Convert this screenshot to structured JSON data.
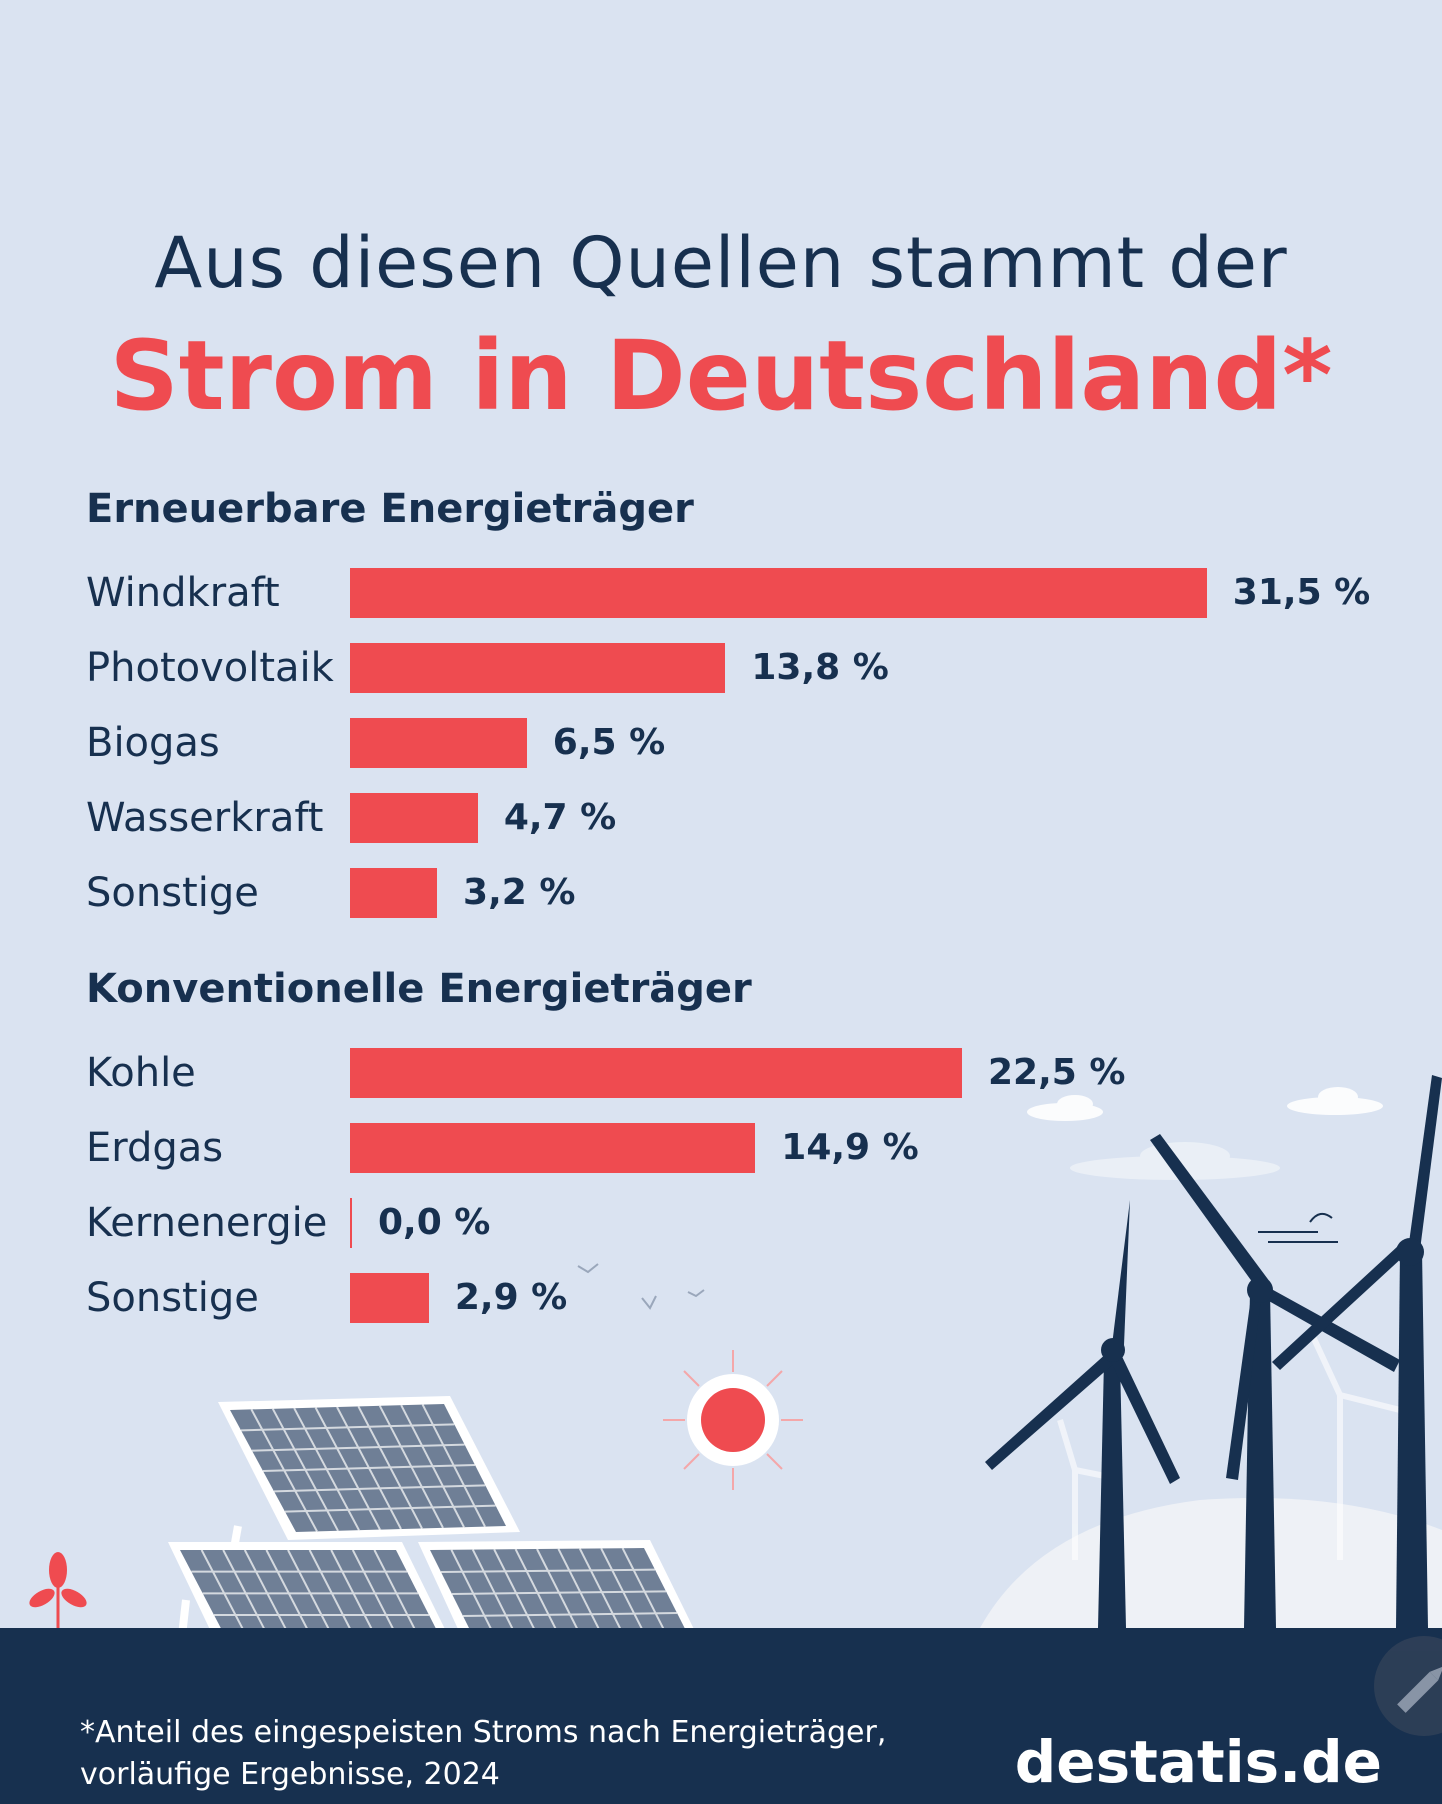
{
  "title_line1": "Aus diesen Quellen stammt der",
  "title_line2": "Strom in Deutschland*",
  "chart_data": [
    {
      "type": "bar",
      "title": "Erneuerbare Energieträger",
      "categories": [
        "Windkraft",
        "Photovoltaik",
        "Biogas",
        "Wasserkraft",
        "Sonstige"
      ],
      "values": [
        31.5,
        13.8,
        6.5,
        4.7,
        3.2
      ],
      "value_labels": [
        "31,5 %",
        "13,8 %",
        "6,5 %",
        "4,7 %",
        "3,2 %"
      ],
      "unit": "%",
      "orientation": "horizontal",
      "bar_color": "#ef4b50"
    },
    {
      "type": "bar",
      "title": "Konventionelle Energieträger",
      "categories": [
        "Kohle",
        "Erdgas",
        "Kernenergie",
        "Sonstige"
      ],
      "values": [
        22.5,
        14.9,
        0.0,
        2.9
      ],
      "value_labels": [
        "22,5 %",
        "14,9 %",
        "0,0 %",
        "2,9 %"
      ],
      "unit": "%",
      "orientation": "horizontal",
      "bar_color": "#ef4b50"
    }
  ],
  "footnote_line1": "*Anteil des eingespeisten Stroms nach Energieträger,",
  "footnote_line2": "vorläufige Ergebnisse, 2024",
  "brand": "destatis.de",
  "colors": {
    "background": "#dae3f1",
    "navy": "#17304f",
    "accent_red": "#ef4b50"
  },
  "icons": [
    "sun-icon",
    "solar-panel-icon",
    "wind-turbine-icon",
    "plant-icon",
    "cloud-icon",
    "bird-icon",
    "pencil-icon"
  ]
}
